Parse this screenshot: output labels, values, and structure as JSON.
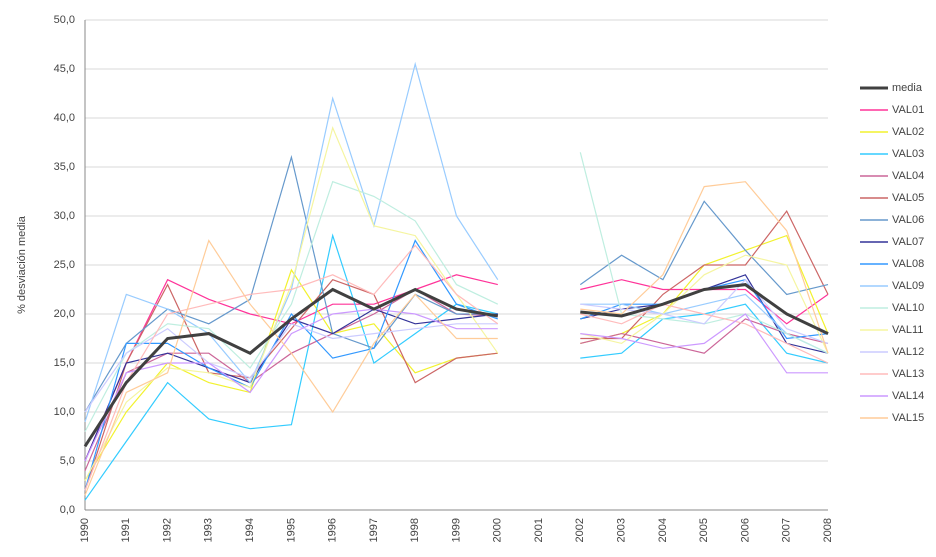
{
  "chart_data": {
    "type": "line",
    "y_label": "% desviación media",
    "categories": [
      "1990",
      "1991",
      "1992",
      "1993",
      "1994",
      "1995",
      "1996",
      "1997",
      "1998",
      "1999",
      "2000",
      "2001",
      "2002",
      "2003",
      "2004",
      "2005",
      "2006",
      "2007",
      "2008"
    ],
    "ylim": [
      0,
      50
    ],
    "yticks": [
      {
        "value": 0,
        "label": "0,0"
      },
      {
        "value": 5,
        "label": "5,0"
      },
      {
        "value": 10,
        "label": "10,0"
      },
      {
        "value": 15,
        "label": "15,0"
      },
      {
        "value": 20,
        "label": "20,0"
      },
      {
        "value": 25,
        "label": "25,0"
      },
      {
        "value": 30,
        "label": "30,0"
      },
      {
        "value": 35,
        "label": "35,0"
      },
      {
        "value": 40,
        "label": "40,0"
      },
      {
        "value": 45,
        "label": "45,0"
      },
      {
        "value": 50,
        "label": "50,0"
      }
    ],
    "grid": true,
    "legend": "right",
    "series": [
      {
        "name": "media",
        "color": "#404040",
        "values": [
          6.5,
          13,
          17.5,
          18,
          16,
          19.5,
          22.5,
          20.5,
          22.5,
          20.5,
          19.8,
          null,
          20.2,
          19.8,
          21,
          22.5,
          23,
          20,
          18
        ]
      },
      {
        "name": "VAL01",
        "color": "#ff3399",
        "values": [
          5,
          15,
          23.5,
          21.5,
          20,
          19,
          21,
          21,
          22.5,
          24,
          23,
          null,
          22.5,
          23.5,
          22.5,
          22.5,
          22.5,
          19,
          22
        ]
      },
      {
        "name": "VAL02",
        "color": "#f2f22e",
        "values": [
          3,
          10,
          15,
          13,
          12,
          24.5,
          18,
          19,
          14,
          15.5,
          16,
          null,
          17,
          18,
          20,
          25,
          26.5,
          28,
          18
        ]
      },
      {
        "name": "VAL03",
        "color": "#33ccff",
        "values": [
          1,
          7,
          13,
          9.3,
          8.3,
          8.7,
          28,
          15,
          18,
          21,
          20,
          null,
          15.5,
          16,
          19.5,
          20,
          21,
          16,
          15
        ]
      },
      {
        "name": "VAL04",
        "color": "#cc6699",
        "values": [
          4,
          14,
          16,
          16,
          13,
          16,
          18,
          20,
          22.5,
          20,
          19.8,
          null,
          17,
          18,
          17,
          16,
          19.5,
          18,
          17
        ]
      },
      {
        "name": "VAL05",
        "color": "#cc6666",
        "values": [
          2,
          15,
          23,
          14,
          13.5,
          18.5,
          23.5,
          22,
          13,
          15.5,
          16,
          null,
          17.5,
          17.5,
          22,
          25,
          25,
          30.5,
          22
        ]
      },
      {
        "name": "VAL06",
        "color": "#6699cc",
        "values": [
          10,
          17,
          20.5,
          19,
          21.5,
          36,
          18,
          16.5,
          22,
          20,
          20,
          null,
          23,
          26,
          23.5,
          31.5,
          26.5,
          22,
          23
        ]
      },
      {
        "name": "VAL07",
        "color": "#333399",
        "values": [
          5,
          15,
          16,
          14.5,
          13,
          19.5,
          18,
          20.5,
          19,
          19.5,
          20,
          null,
          19.5,
          20.5,
          21,
          22.5,
          24,
          17,
          16
        ]
      },
      {
        "name": "VAL08",
        "color": "#3399ff",
        "values": [
          2,
          17,
          17,
          14.5,
          12.5,
          20,
          15.5,
          16.5,
          27.5,
          21,
          19.5,
          null,
          19.5,
          21,
          21,
          22.5,
          23.5,
          17.5,
          18
        ]
      },
      {
        "name": "VAL09",
        "color": "#99ccff",
        "values": [
          9,
          22,
          20.5,
          18,
          13,
          22.5,
          42,
          29,
          45.5,
          30,
          23.5,
          null,
          21,
          21,
          20,
          21,
          22,
          18,
          16
        ]
      },
      {
        "name": "VAL10",
        "color": "#bfeee0",
        "values": [
          8,
          16,
          19,
          18.5,
          14.5,
          21,
          33.5,
          32,
          29.5,
          23,
          21,
          null,
          36.5,
          20,
          19.5,
          19,
          20,
          18,
          16
        ]
      },
      {
        "name": "VAL11",
        "color": "#f5f5a0",
        "values": [
          3,
          11,
          14.5,
          14,
          12.5,
          23,
          39,
          29,
          28,
          22,
          16,
          null,
          18,
          17,
          20,
          24,
          26,
          25,
          16
        ]
      },
      {
        "name": "VAL12",
        "color": "#ccccff",
        "values": [
          10,
          16,
          18.5,
          15,
          13.5,
          19,
          17.5,
          18,
          18.5,
          19,
          19,
          null,
          21,
          20.5,
          20,
          19,
          23.5,
          18.5,
          17
        ]
      },
      {
        "name": "VAL13",
        "color": "#ffbbbb",
        "values": [
          2,
          13,
          20,
          21,
          22,
          22.5,
          24,
          22,
          27,
          22,
          19,
          null,
          20,
          19,
          21,
          20,
          19,
          17,
          15
        ]
      },
      {
        "name": "VAL14",
        "color": "#cc99ff",
        "values": [
          5,
          14,
          15,
          15,
          12,
          18,
          20,
          20.5,
          20,
          18.5,
          18.5,
          null,
          18,
          17.5,
          16.5,
          17,
          20,
          14,
          14
        ]
      },
      {
        "name": "VAL15",
        "color": "#ffcc99",
        "values": [
          1.5,
          12,
          14,
          27.5,
          21,
          16,
          10,
          17,
          22,
          17.5,
          17.5,
          null,
          20.5,
          20,
          24,
          33,
          33.5,
          28.5,
          16
        ]
      }
    ]
  }
}
